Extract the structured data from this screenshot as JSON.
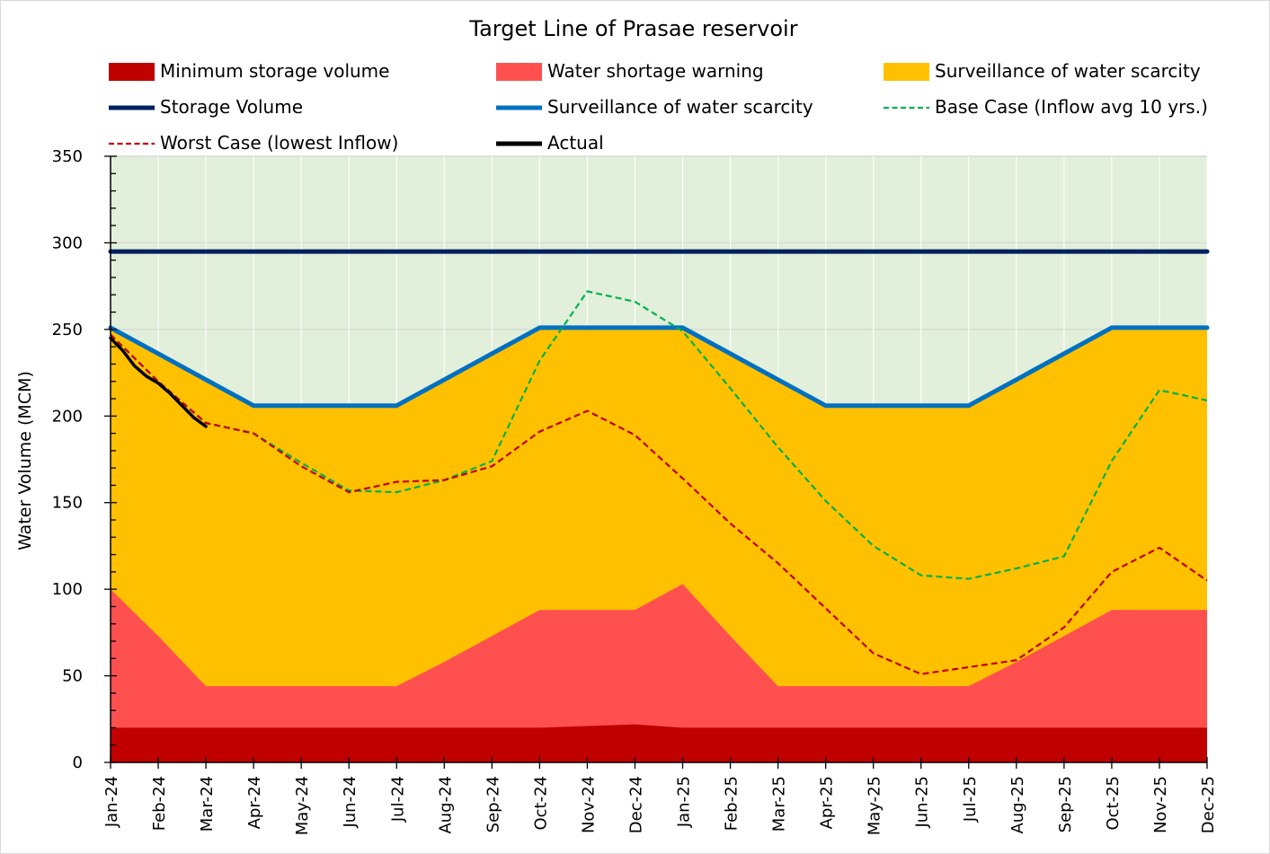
{
  "chart_data": {
    "type": "area",
    "title": "Target Line of Prasae reservoir",
    "ylabel": "Water Volume (MCM)",
    "xlabel": "",
    "ylim": [
      0,
      350
    ],
    "yticks": [
      0,
      50,
      100,
      150,
      200,
      250,
      300,
      350
    ],
    "grid": "horizontal",
    "legend_position": "top",
    "background_zone_color": "#e2efda",
    "categories": [
      "Jan-24",
      "Feb-24",
      "Mar-24",
      "Apr-24",
      "May-24",
      "Jun-24",
      "Jul-24",
      "Aug-24",
      "Sep-24",
      "Oct-24",
      "Nov-24",
      "Dec-24",
      "Jan-25",
      "Feb-25",
      "Mar-25",
      "Apr-25",
      "May-25",
      "Jun-25",
      "Jul-25",
      "Aug-25",
      "Sep-25",
      "Oct-25",
      "Nov-25",
      "Dec-25"
    ],
    "series": [
      {
        "name": "Minimum storage volume",
        "kind": "area",
        "color": "#c00000",
        "values": [
          20,
          20,
          20,
          20,
          20,
          20,
          20,
          20,
          20,
          20,
          21,
          22,
          20,
          20,
          20,
          20,
          20,
          20,
          20,
          20,
          20,
          20,
          20,
          20
        ]
      },
      {
        "name": "Water shortage warning",
        "kind": "area",
        "color": "#ff5050",
        "values": [
          100,
          73,
          44,
          44,
          44,
          44,
          44,
          58,
          73,
          88,
          88,
          88,
          103,
          73,
          44,
          44,
          44,
          44,
          44,
          58,
          73,
          88,
          88,
          88
        ]
      },
      {
        "name": "Surveillance of water scarcity",
        "kind": "area",
        "color": "#ffc000",
        "values": [
          251,
          236,
          221,
          206,
          206,
          206,
          206,
          221,
          236,
          251,
          251,
          251,
          251,
          236,
          221,
          206,
          206,
          206,
          206,
          221,
          236,
          251,
          251,
          251
        ]
      },
      {
        "name": "Storage Volume",
        "kind": "line",
        "style": "solid",
        "color": "#002060",
        "values": [
          295,
          295,
          295,
          295,
          295,
          295,
          295,
          295,
          295,
          295,
          295,
          295,
          295,
          295,
          295,
          295,
          295,
          295,
          295,
          295,
          295,
          295,
          295,
          295
        ]
      },
      {
        "name": "Surveillance of water scarcity",
        "kind": "line",
        "style": "solid",
        "color": "#0070c0",
        "values": [
          251,
          236,
          221,
          206,
          206,
          206,
          206,
          221,
          236,
          251,
          251,
          251,
          251,
          236,
          221,
          206,
          206,
          206,
          206,
          221,
          236,
          251,
          251,
          251
        ]
      },
      {
        "name": "Base Case (Inflow avg 10 yrs.)",
        "kind": "line",
        "style": "dashed",
        "color": "#00b050",
        "values": [
          247,
          220,
          196,
          190,
          173,
          157,
          156,
          163,
          174,
          232,
          272,
          266,
          249,
          216,
          182,
          151,
          125,
          108,
          106,
          112,
          119,
          174,
          215,
          209
        ]
      },
      {
        "name": "Worst Case (lowest Inflow)",
        "kind": "line",
        "style": "dashed",
        "color": "#c00000",
        "values": [
          247,
          220,
          196,
          190,
          171,
          156,
          162,
          163,
          171,
          191,
          203,
          189,
          164,
          138,
          115,
          89,
          63,
          51,
          55,
          59,
          78,
          110,
          124,
          105
        ]
      },
      {
        "name": "Actual",
        "kind": "line",
        "style": "solid",
        "color": "#000000",
        "x": [
          0,
          0.25,
          0.5,
          0.75,
          1,
          1.25,
          1.5,
          1.75,
          2
        ],
        "values": [
          245,
          238,
          229,
          223,
          219,
          213,
          206,
          199,
          194
        ]
      }
    ]
  }
}
